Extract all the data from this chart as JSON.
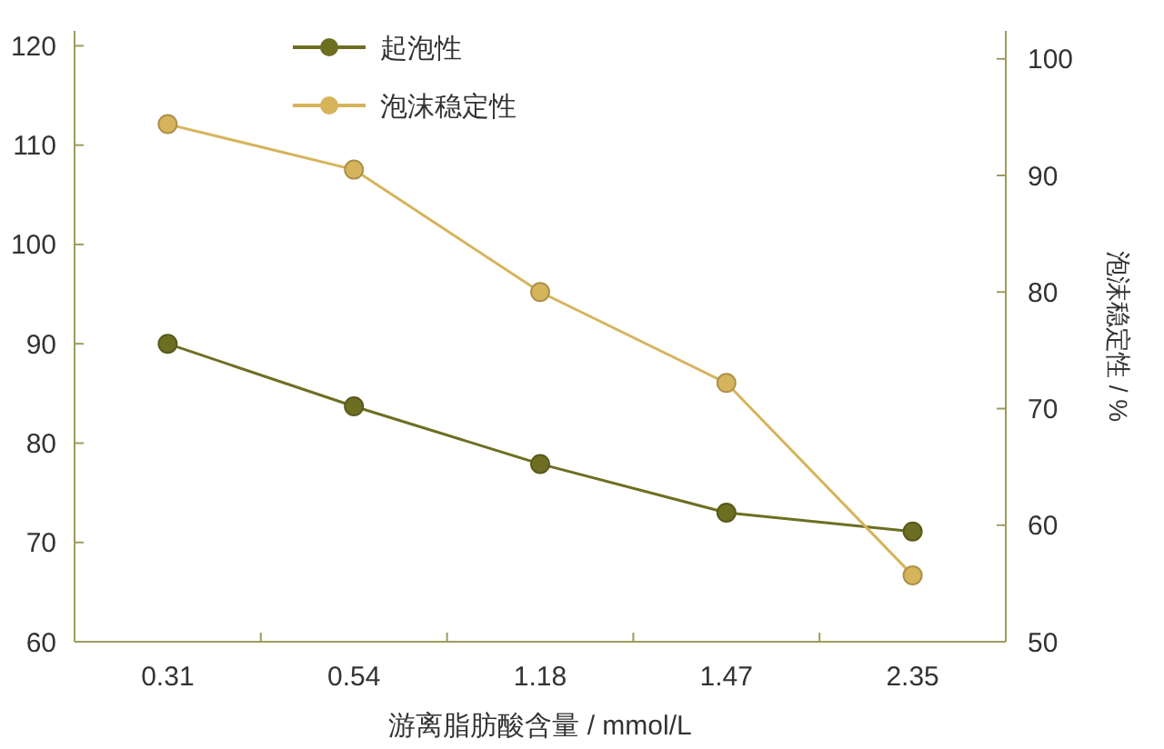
{
  "chart_data": {
    "type": "line",
    "xlabel": "游离脂肪酸含量 / mmol/L",
    "y2label": "泡沫稳定性 / %",
    "categories": [
      "0.31",
      "0.54",
      "1.18",
      "1.47",
      "2.35"
    ],
    "series": [
      {
        "name": "起泡性",
        "color": "#6e6e22",
        "values": [
          90,
          83.7,
          77.9,
          73,
          71.1
        ]
      },
      {
        "name": "泡沫稳定性",
        "color": "#d6b45c",
        "values": [
          94.4,
          90.5,
          80,
          72.2,
          55.7
        ],
        "axis": "y2"
      }
    ],
    "ylim": [
      60,
      121.5
    ],
    "yticks": [
      60,
      70,
      80,
      90,
      100,
      110,
      120
    ],
    "y2lim": [
      50,
      102.4
    ],
    "y2ticks": [
      50,
      60,
      70,
      80,
      90,
      100
    ],
    "grid": false,
    "legend": "top left",
    "marker": "circle",
    "line_style": "solid"
  }
}
